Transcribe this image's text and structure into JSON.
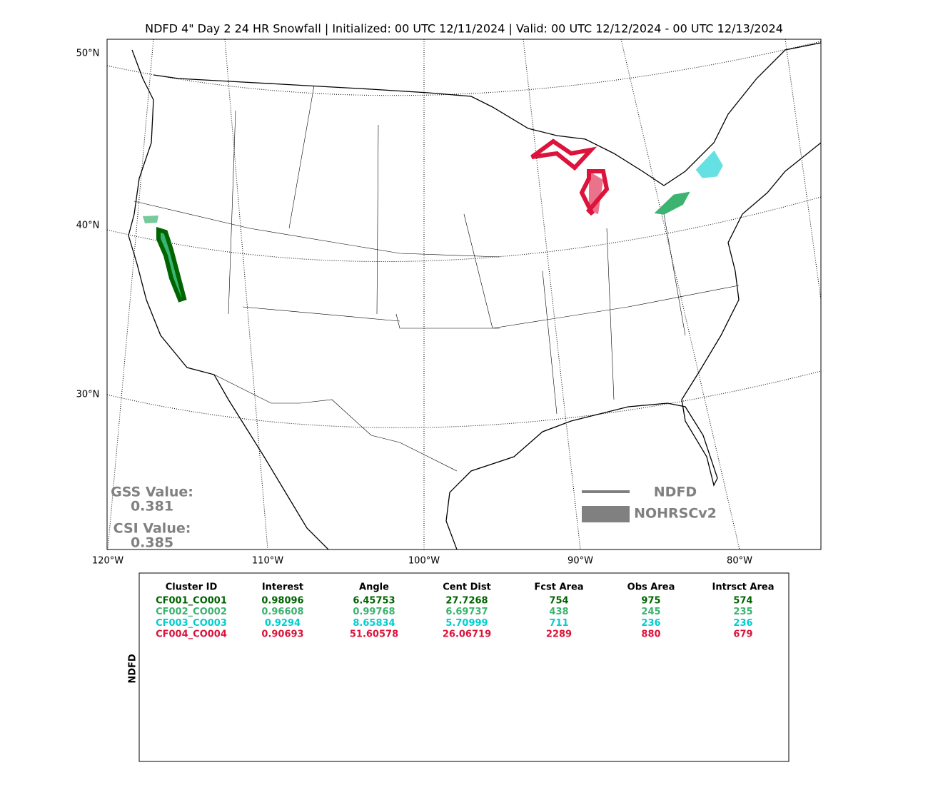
{
  "header": {
    "title": "NDFD 4\" Day 2 24 HR Snowfall | Initialized: 00 UTC 12/11/2024 | Valid: 00 UTC 12/12/2024 - 00 UTC 12/13/2024"
  },
  "map": {
    "lat_labels": [
      "50°N",
      "40°N",
      "30°N"
    ],
    "lon_labels": [
      "120°W",
      "110°W",
      "100°W",
      "90°W",
      "80°W"
    ],
    "scores": {
      "gss_label": "GSS Value:",
      "gss_value": 0.381,
      "csi_label": "CSI Value:",
      "csi_value": 0.385
    },
    "legend": [
      {
        "label": "NDFD",
        "style": "line"
      },
      {
        "label": "NOHRSCv2",
        "style": "area"
      }
    ]
  },
  "table": {
    "side_label": "NDFD",
    "columns": [
      "Cluster ID",
      "Interest",
      "Angle",
      "Cent Dist",
      "Fcst Area",
      "Obs Area",
      "Intrsct Area"
    ],
    "rows": [
      {
        "color": "#006400",
        "cells": [
          "CF001_CO001",
          0.98096,
          6.45753,
          27.7268,
          754,
          975,
          574
        ]
      },
      {
        "color": "#3cb371",
        "cells": [
          "CF002_CO002",
          0.96608,
          0.99768,
          6.69737,
          438,
          245,
          235
        ]
      },
      {
        "color": "#00ced1",
        "cells": [
          "CF003_CO003",
          0.9294,
          8.65834,
          5.70999,
          711,
          236,
          236
        ]
      },
      {
        "color": "#dc143c",
        "cells": [
          "CF004_CO004",
          0.90693,
          51.60578,
          26.06719,
          2289,
          880,
          679
        ]
      }
    ]
  }
}
